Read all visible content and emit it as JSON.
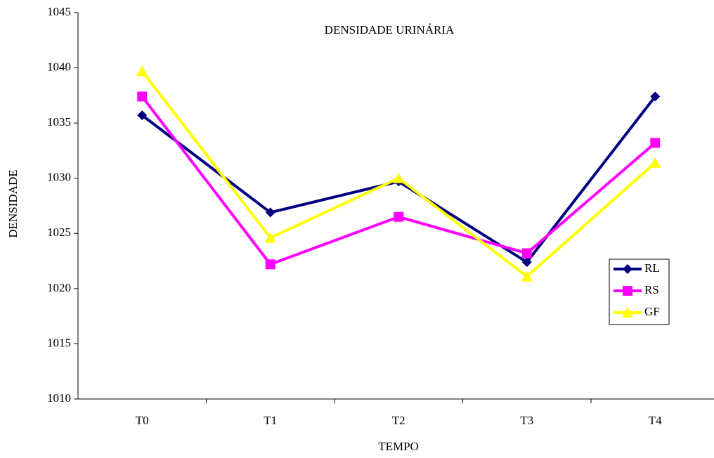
{
  "chart_data": {
    "type": "line",
    "title": "DENSIDADE URINÁRIA",
    "x_label": "TEMPO",
    "y_label": "DENSIDADE",
    "categories": [
      "T0",
      "T1",
      "T2",
      "T3",
      "T4"
    ],
    "series": [
      {
        "name": "RL",
        "color": "#000080",
        "marker": "diamond",
        "values": [
          1035.7,
          1026.9,
          1029.7,
          1022.4,
          1037.4
        ]
      },
      {
        "name": "RS",
        "color": "#ff00ff",
        "marker": "square",
        "values": [
          1037.4,
          1022.2,
          1026.5,
          1023.2,
          1033.2
        ]
      },
      {
        "name": "GF",
        "color": "#ffff00",
        "marker": "triangle",
        "values": [
          1039.7,
          1024.6,
          1030.0,
          1021.1,
          1031.4
        ]
      }
    ],
    "ylim": [
      1010,
      1045
    ],
    "yticks": [
      1010,
      1015,
      1020,
      1025,
      1030,
      1035,
      1040,
      1045
    ],
    "grid": false,
    "legend": "right"
  }
}
